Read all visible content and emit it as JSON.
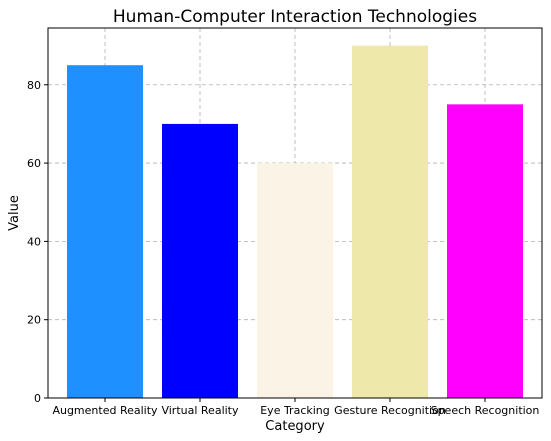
{
  "chart_data": {
    "type": "bar",
    "title": "Human-Computer Interaction Technologies",
    "xlabel": "Category",
    "ylabel": "Value",
    "categories": [
      "Augmented Reality",
      "Virtual Reality",
      "Eye Tracking",
      "Gesture Recognition",
      "Speech Recognition"
    ],
    "values": [
      85,
      70,
      60,
      90,
      75
    ],
    "colors": [
      "#1e90ff",
      "#0000ff",
      "#fbf3e6",
      "#eee8aa",
      "#ff00ff"
    ],
    "ylim": [
      0,
      94.5
    ],
    "yticks": [
      0,
      20,
      40,
      60,
      80
    ],
    "grid": true,
    "legend": "none"
  }
}
